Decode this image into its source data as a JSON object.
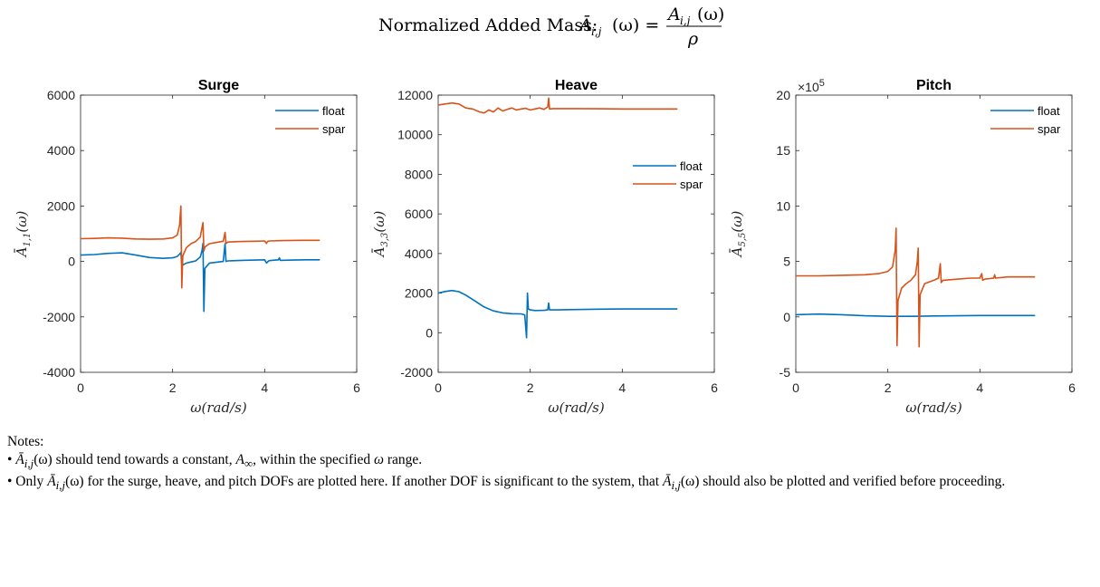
{
  "suptitle": {
    "prefix": "Normalized Added Mass: ",
    "lhs": "Ā",
    "lhs_sub": "i,j",
    "lhs_arg": "(ω) =",
    "num": "A",
    "num_sub": "i,j",
    "num_arg": "(ω)",
    "den": "ρ"
  },
  "colors": {
    "float": "#0072BD",
    "spar": "#D95319",
    "axis": "#262626",
    "grid_none": true
  },
  "chart_data": [
    {
      "type": "line",
      "title": "Surge",
      "xlabel": "ω(rad/s)",
      "ylabel_main": "Ā",
      "ylabel_sub": "1,1",
      "ylabel_arg": "(ω)",
      "xlim": [
        0,
        6
      ],
      "ylim": [
        -4000,
        6000
      ],
      "xticks": [
        "0",
        "2",
        "4",
        "6"
      ],
      "yticks": [
        "-4000",
        "-2000",
        "0",
        "2000",
        "4000",
        "6000"
      ],
      "ytick_values": [
        -4000,
        -2000,
        0,
        2000,
        4000,
        6000
      ],
      "xtick_values": [
        0,
        2,
        4,
        6
      ],
      "exponent_label": "",
      "legend_location": "top-right",
      "series": [
        {
          "name": "float",
          "x": [
            0,
            0.3,
            0.6,
            0.9,
            1.2,
            1.5,
            1.8,
            2.0,
            2.1,
            2.16,
            2.18,
            2.2,
            2.22,
            2.3,
            2.4,
            2.5,
            2.6,
            2.64,
            2.66,
            2.68,
            2.7,
            2.8,
            3.0,
            3.1,
            3.14,
            3.16,
            3.2,
            3.5,
            3.8,
            4.0,
            4.04,
            4.06,
            4.1,
            4.3,
            4.32,
            4.34,
            4.6,
            4.9,
            5.2
          ],
          "values": [
            230,
            250,
            290,
            310,
            230,
            140,
            110,
            130,
            180,
            280,
            320,
            -150,
            -130,
            -60,
            -20,
            20,
            160,
            400,
            650,
            -1800,
            -250,
            -60,
            -20,
            0,
            640,
            0,
            20,
            40,
            50,
            60,
            -60,
            -20,
            30,
            60,
            130,
            40,
            50,
            60,
            60
          ]
        },
        {
          "name": "spar",
          "x": [
            0,
            0.3,
            0.6,
            0.9,
            1.2,
            1.5,
            1.8,
            2.0,
            2.1,
            2.15,
            2.18,
            2.2,
            2.22,
            2.3,
            2.4,
            2.5,
            2.6,
            2.63,
            2.66,
            2.68,
            2.7,
            2.8,
            3.0,
            3.1,
            3.14,
            3.16,
            3.2,
            3.5,
            3.8,
            4.0,
            4.04,
            4.06,
            4.1,
            4.4,
            4.8,
            5.2
          ],
          "values": [
            820,
            830,
            850,
            840,
            810,
            800,
            810,
            850,
            950,
            1300,
            2000,
            -950,
            200,
            500,
            640,
            720,
            880,
            1150,
            1400,
            380,
            520,
            640,
            700,
            730,
            1050,
            650,
            700,
            720,
            730,
            740,
            650,
            720,
            740,
            750,
            760,
            760
          ]
        }
      ]
    },
    {
      "type": "line",
      "title": "Heave",
      "xlabel": "ω(rad/s)",
      "ylabel_main": "Ā",
      "ylabel_sub": "3,3",
      "ylabel_arg": "(ω)",
      "xlim": [
        0,
        6
      ],
      "ylim": [
        -2000,
        12000
      ],
      "xticks": [
        "0",
        "2",
        "4",
        "6"
      ],
      "yticks": [
        "-2000",
        "0",
        "2000",
        "4000",
        "6000",
        "8000",
        "10000",
        "12000"
      ],
      "ytick_values": [
        -2000,
        0,
        2000,
        4000,
        6000,
        8000,
        10000,
        12000
      ],
      "xtick_values": [
        0,
        2,
        4,
        6
      ],
      "exponent_label": "",
      "legend_location": "right",
      "series": [
        {
          "name": "float",
          "x": [
            0,
            0.15,
            0.3,
            0.45,
            0.6,
            0.8,
            1.0,
            1.2,
            1.4,
            1.6,
            1.8,
            1.88,
            1.92,
            1.94,
            1.96,
            2.0,
            2.1,
            2.3,
            2.38,
            2.4,
            2.42,
            2.6,
            3.0,
            3.5,
            4.0,
            4.5,
            5.2
          ],
          "values": [
            2000,
            2080,
            2130,
            2070,
            1900,
            1600,
            1300,
            1100,
            1000,
            960,
            950,
            900,
            -250,
            2000,
            1200,
            1150,
            1120,
            1130,
            1150,
            1500,
            1150,
            1150,
            1170,
            1190,
            1200,
            1200,
            1200
          ]
        },
        {
          "name": "spar",
          "x": [
            0,
            0.15,
            0.3,
            0.45,
            0.6,
            0.75,
            0.9,
            1.0,
            1.1,
            1.2,
            1.3,
            1.4,
            1.5,
            1.6,
            1.7,
            1.8,
            1.9,
            2.0,
            2.1,
            2.2,
            2.3,
            2.38,
            2.4,
            2.42,
            2.5,
            3.0,
            3.5,
            4.0,
            4.5,
            5.2
          ],
          "values": [
            11500,
            11550,
            11600,
            11550,
            11350,
            11300,
            11150,
            11100,
            11250,
            11150,
            11350,
            11200,
            11280,
            11350,
            11250,
            11300,
            11330,
            11250,
            11300,
            11350,
            11280,
            11400,
            11850,
            11300,
            11320,
            11320,
            11310,
            11300,
            11300,
            11300
          ]
        }
      ]
    },
    {
      "type": "line",
      "title": "Pitch",
      "xlabel": "ω(rad/s)",
      "ylabel_main": "Ā",
      "ylabel_sub": "5,5",
      "ylabel_arg": "(ω)",
      "xlim": [
        0,
        6
      ],
      "ylim": [
        -5,
        20
      ],
      "xticks": [
        "0",
        "2",
        "4",
        "6"
      ],
      "yticks": [
        "-5",
        "0",
        "5",
        "10",
        "15",
        "20"
      ],
      "ytick_values": [
        -5,
        0,
        5,
        10,
        15,
        20
      ],
      "xtick_values": [
        0,
        2,
        4,
        6
      ],
      "exponent_label": "×10",
      "exponent_power": "5",
      "legend_location": "top-right",
      "series": [
        {
          "name": "float",
          "x": [
            0,
            0.5,
            1.0,
            1.5,
            2.0,
            2.5,
            3.0,
            3.5,
            4.0,
            4.5,
            5.2
          ],
          "values": [
            0.2,
            0.25,
            0.2,
            0.1,
            0.05,
            0.05,
            0.08,
            0.1,
            0.12,
            0.12,
            0.12
          ]
        },
        {
          "name": "spar",
          "x": [
            0,
            0.5,
            1.0,
            1.5,
            1.8,
            2.0,
            2.1,
            2.16,
            2.18,
            2.2,
            2.22,
            2.3,
            2.4,
            2.5,
            2.6,
            2.64,
            2.66,
            2.68,
            2.7,
            2.8,
            3.0,
            3.1,
            3.14,
            3.16,
            3.2,
            3.5,
            3.8,
            4.0,
            4.04,
            4.06,
            4.1,
            4.3,
            4.32,
            4.34,
            4.6,
            5.2
          ],
          "values": [
            3.7,
            3.7,
            3.75,
            3.8,
            3.9,
            4.1,
            4.5,
            6.0,
            8.0,
            -2.6,
            1.5,
            2.6,
            3.0,
            3.3,
            3.8,
            5.0,
            6.2,
            -2.7,
            2.0,
            3.0,
            3.3,
            3.5,
            4.8,
            3.1,
            3.3,
            3.4,
            3.5,
            3.5,
            3.9,
            3.3,
            3.4,
            3.5,
            3.8,
            3.5,
            3.6,
            3.6
          ]
        }
      ]
    }
  ],
  "notes": {
    "heading": "Notes:",
    "line1_bullet": "• ",
    "line1_sym": "Ā",
    "line1_sub": "i,j",
    "line1_arg": "(ω)",
    "line1_text_a": " should tend towards a constant, ",
    "line1_ainf": "A",
    "line1_ainf_sub": "∞",
    "line1_text_b": ", within the specified ",
    "line1_omega": "ω",
    "line1_text_c": " range.",
    "line2_bullet": "• Only ",
    "line2_sym": "Ā",
    "line2_sub": "i,j",
    "line2_arg": "(ω)",
    "line2_text_a": " for the surge, heave, and pitch DOFs are plotted here. If another DOF is significant to the system, that ",
    "line2_sym2": "Ā",
    "line2_sub2": "i,j",
    "line2_arg2": "(ω)",
    "line2_text_b": " should also be plotted and verified before proceeding."
  }
}
